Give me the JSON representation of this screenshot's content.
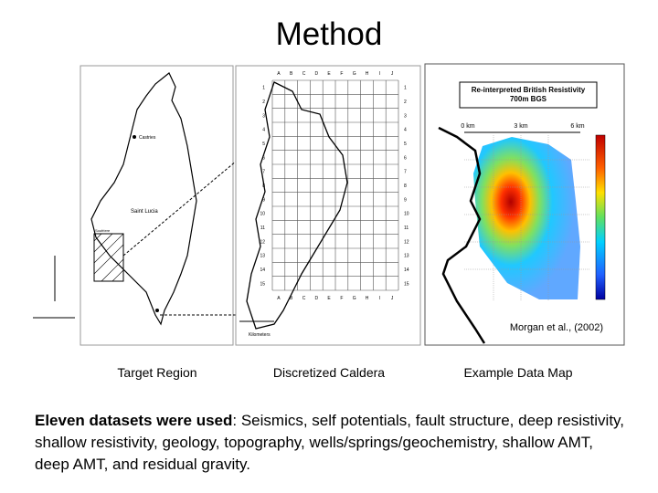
{
  "title": "Method",
  "panels": [
    {
      "caption": "Target Region",
      "labels": [
        "Castries",
        "Saint Lucia",
        "Soufriere"
      ]
    },
    {
      "caption": "Discretized Caldera",
      "columns": [
        "A",
        "B",
        "C",
        "D",
        "E",
        "F",
        "G",
        "H",
        "I",
        "J"
      ],
      "rows": [
        1,
        2,
        3,
        4,
        5,
        6,
        7,
        8,
        9,
        10,
        11,
        12,
        13,
        14,
        15
      ],
      "scale": "Kilometers"
    },
    {
      "caption": "Example Data Map",
      "map_title": "Re-interpreted British Resistivity 700m BGS",
      "scale_labels": [
        "0 km",
        "3 km",
        "6 km"
      ],
      "credit": "Morgan et al., (2002)"
    }
  ],
  "body": {
    "lead": "Eleven datasets were used",
    "text": ": Seismics, self potentials, fault structure, deep resistivity, shallow resistivity, geology, topography, wells/springs/geochemistry, shallow AMT, deep AMT, and residual gravity."
  }
}
